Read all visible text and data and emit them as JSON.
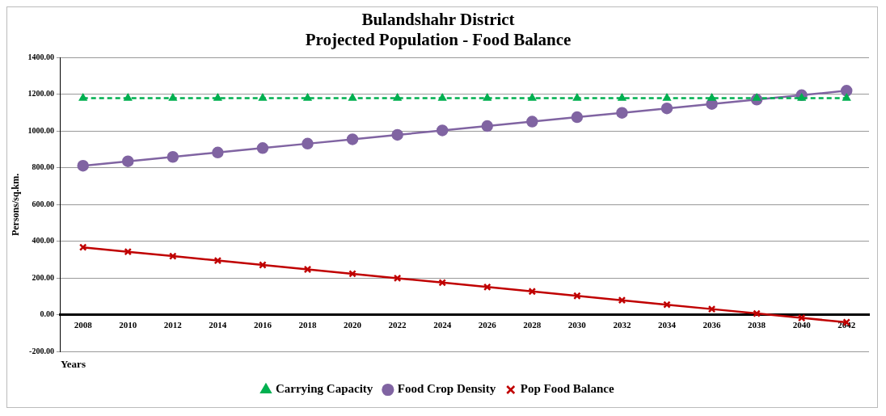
{
  "chart_data": {
    "type": "line",
    "title": "Bulandshahr District",
    "subtitle": "Projected Population - Food Balance",
    "xlabel": "Years",
    "ylabel": "Persons/sq.km.",
    "categories": [
      "2008",
      "2010",
      "2012",
      "2014",
      "2016",
      "2018",
      "2020",
      "2022",
      "2024",
      "2026",
      "2028",
      "2030",
      "2032",
      "2034",
      "2036",
      "2038",
      "2040",
      "2042"
    ],
    "series": [
      {
        "name": "Carrying Capacity",
        "color": "#00b050",
        "marker": "triangle",
        "line_style": "dashed",
        "values": [
          1180,
          1180,
          1180,
          1180,
          1180,
          1180,
          1180,
          1180,
          1180,
          1180,
          1180,
          1180,
          1180,
          1180,
          1180,
          1180,
          1180,
          1180
        ]
      },
      {
        "name": "Food Crop Density",
        "color": "#8064a2",
        "marker": "circle",
        "line_style": "solid",
        "values": [
          812,
          836,
          860,
          884,
          908,
          932,
          956,
          980,
          1004,
          1028,
          1052,
          1076,
          1100,
          1124,
          1148,
          1172,
          1196,
          1220
        ]
      },
      {
        "name": "Pop Food Balance",
        "color": "#c00000",
        "marker": "cross",
        "line_style": "solid",
        "values": [
          368,
          344,
          320,
          296,
          272,
          248,
          224,
          200,
          176,
          152,
          128,
          104,
          80,
          56,
          32,
          8,
          -16,
          -40
        ]
      }
    ],
    "ylim": [
      -200,
      1400
    ],
    "yticks": [
      {
        "value": -200,
        "label": "-200.00"
      },
      {
        "value": 0,
        "label": "0.00"
      },
      {
        "value": 200,
        "label": "200.00"
      },
      {
        "value": 400,
        "label": "400.00"
      },
      {
        "value": 600,
        "label": "600.00"
      },
      {
        "value": 800,
        "label": "800.00"
      },
      {
        "value": 1000,
        "label": "1000.00"
      },
      {
        "value": 1200,
        "label": "1200.00"
      },
      {
        "value": 1400,
        "label": "1400.00"
      }
    ],
    "grid": "y",
    "legend": "bottom"
  }
}
